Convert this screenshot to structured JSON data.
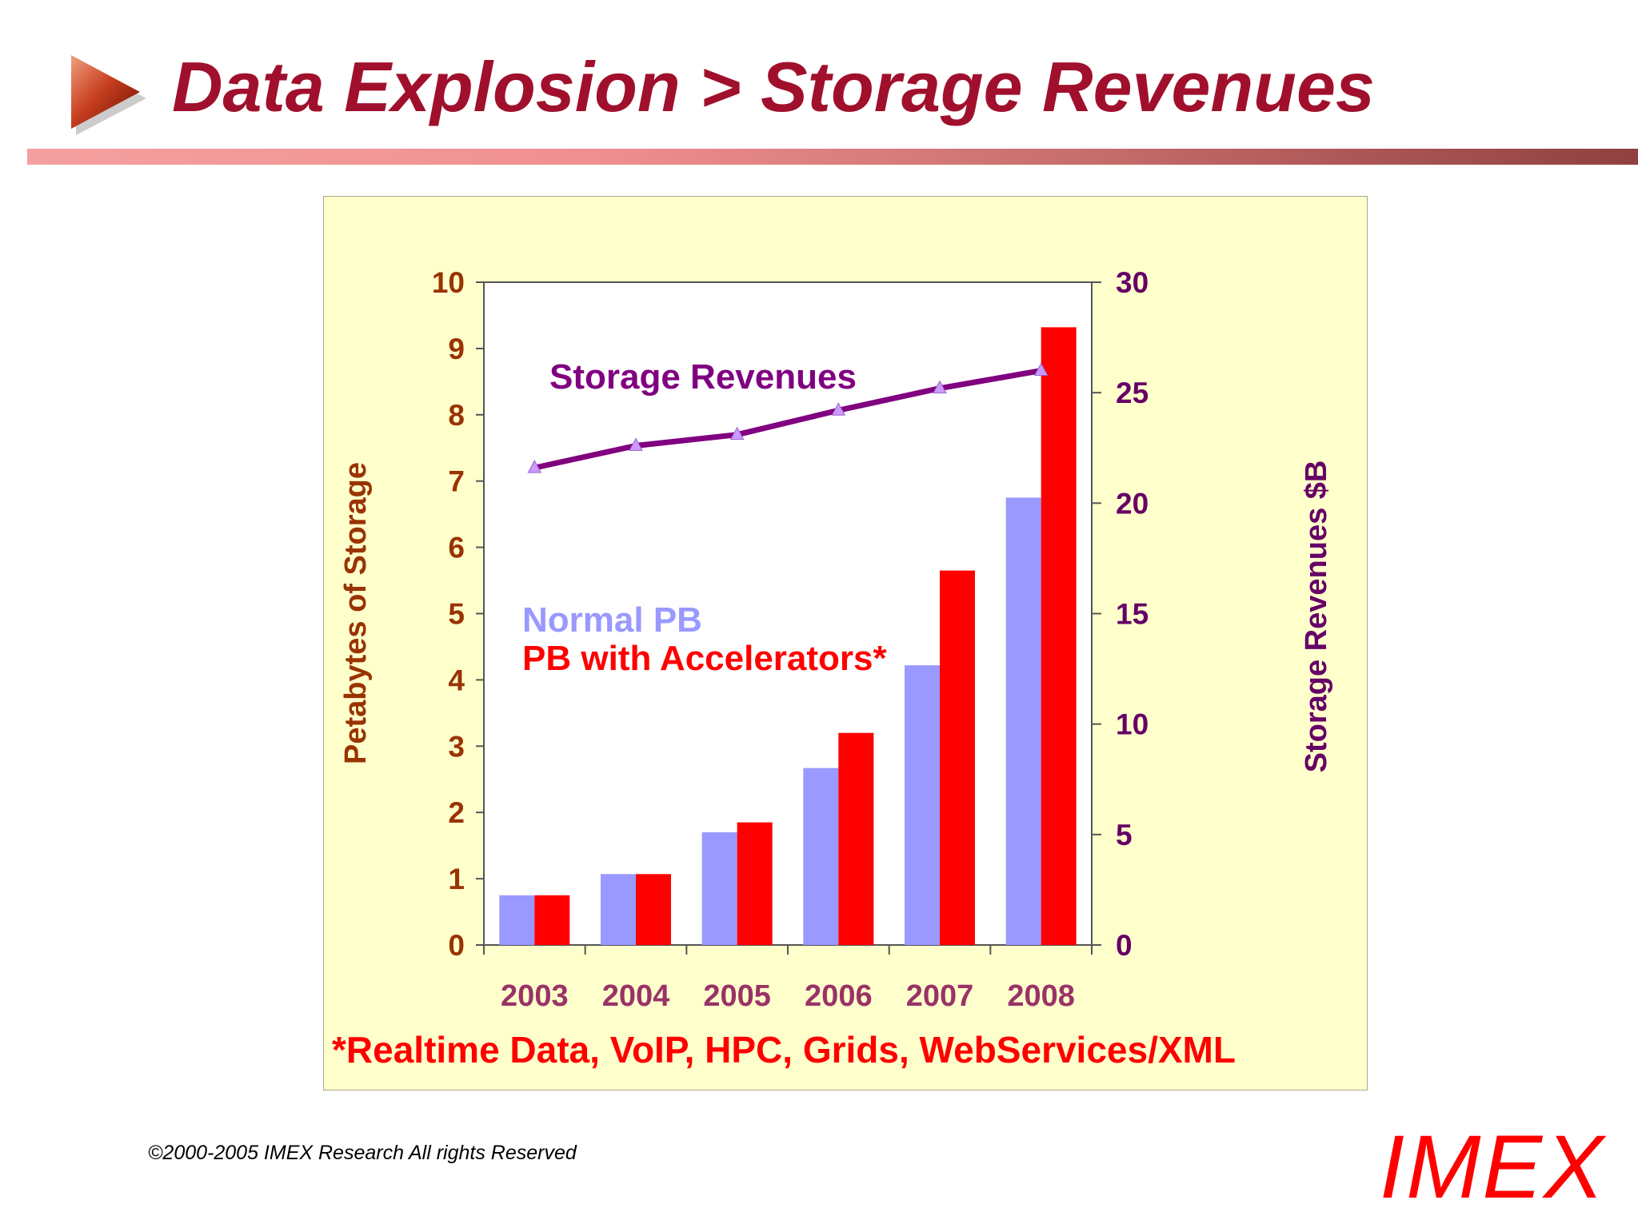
{
  "slide": {
    "title": "Data Explosion > Storage Revenues",
    "copyright": "©2000-2005  IMEX Research All rights Reserved",
    "logo_text": "IMEX"
  },
  "colors": {
    "title": "#a0102c",
    "normal_bar": "#9999ff",
    "accelerated_bar": "#ff0000",
    "revenue_line": "#800080",
    "revenue_marker": "#cc99ff",
    "left_axis_text": "#993300",
    "right_axis_text": "#660066",
    "x_tick_text": "#993366",
    "panel_background": "#ffffcc",
    "plot_background": "#ffffff"
  },
  "chart_data": {
    "type": "bar",
    "title": "",
    "categories": [
      "2003",
      "2004",
      "2005",
      "2006",
      "2007",
      "2008"
    ],
    "ylabel": "Petabytes of Storage",
    "ylim": [
      0,
      10
    ],
    "y_ticks": [
      "0",
      "1",
      "2",
      "3",
      "4",
      "5",
      "6",
      "7",
      "8",
      "9",
      "10"
    ],
    "y2label": "Storage Revenues $B",
    "y2lim": [
      0,
      30
    ],
    "y2_ticks": [
      "0",
      "5",
      "10",
      "15",
      "20",
      "25",
      "30"
    ],
    "grid": false,
    "series": [
      {
        "name": "Normal PB",
        "type": "bar",
        "axis": "left",
        "values": [
          0.75,
          1.07,
          1.7,
          2.67,
          4.22,
          6.75
        ]
      },
      {
        "name": "PB with Accelerators*",
        "type": "bar",
        "axis": "left",
        "values": [
          0.75,
          1.07,
          1.85,
          3.2,
          5.65,
          9.32
        ]
      },
      {
        "name": "Storage Revenues",
        "type": "line",
        "axis": "right",
        "values": [
          21.6,
          22.6,
          23.1,
          24.2,
          25.2,
          26.0
        ]
      }
    ],
    "footnote": "*Realtime Data, VoIP, HPC, Grids, WebServices/XML"
  }
}
